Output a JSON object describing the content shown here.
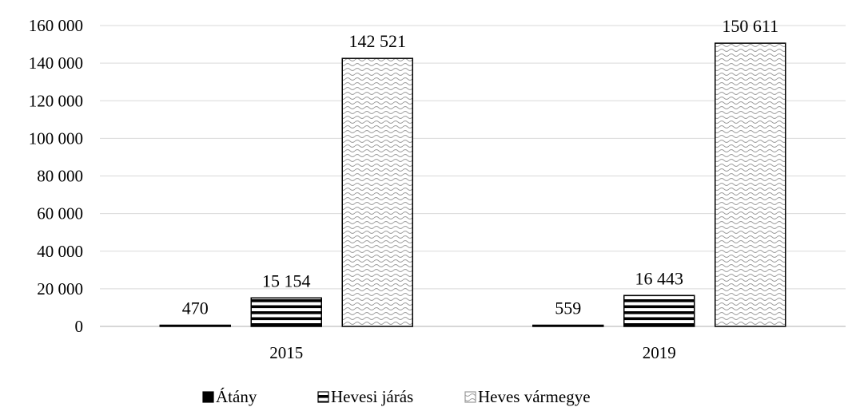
{
  "chart_data": {
    "type": "bar",
    "categories": [
      "2015",
      "2019"
    ],
    "series": [
      {
        "name": "Átány",
        "values": [
          470,
          559
        ],
        "labels": [
          "470",
          "559"
        ],
        "pattern": "solid"
      },
      {
        "name": "Hevesi járás",
        "values": [
          15154,
          16443
        ],
        "labels": [
          "15 154",
          "16 443"
        ],
        "pattern": "stripes"
      },
      {
        "name": "Heves vármegye",
        "values": [
          142521,
          150611
        ],
        "labels": [
          "142 521",
          "150 611"
        ],
        "pattern": "waves"
      }
    ],
    "ylim": [
      0,
      160000
    ],
    "yticks": [
      0,
      20000,
      40000,
      60000,
      80000,
      100000,
      120000,
      140000,
      160000
    ],
    "ytick_labels": [
      "0",
      "20 000",
      "40 000",
      "60 000",
      "80 000",
      "100 000",
      "120 000",
      "140 000",
      "160 000"
    ],
    "grid": true,
    "legend_position": "bottom",
    "colors": {
      "fill": "#000000",
      "grid": "#d9d9d9",
      "background": "#ffffff"
    }
  }
}
